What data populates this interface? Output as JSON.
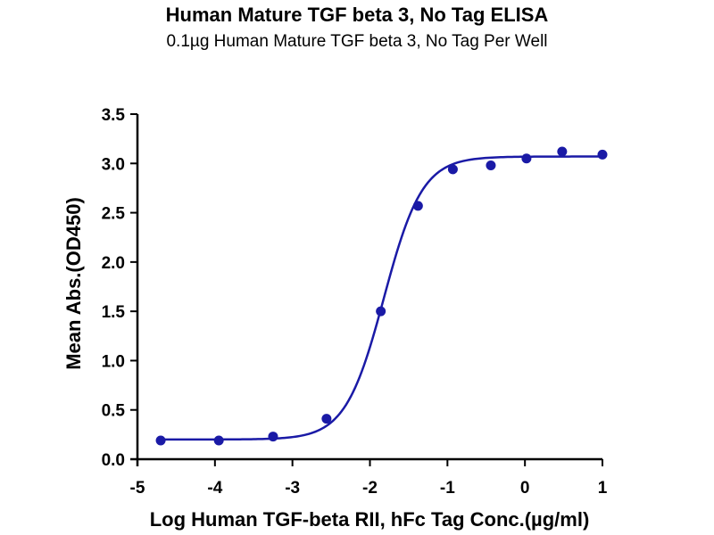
{
  "chart_data": {
    "type": "scatter",
    "title": "Human Mature TGF beta 3, No Tag ELISA",
    "subtitle": "0.1µg Human Mature TGF beta 3, No Tag Per Well",
    "xlabel": "Log Human TGF-beta RII, hFc Tag Conc.(µg/ml)",
    "ylabel": "Mean Abs.(OD450)",
    "xlim": [
      -5,
      1
    ],
    "ylim": [
      0,
      3.5
    ],
    "x_ticks": [
      "-5",
      "-4",
      "-3",
      "-2",
      "-1",
      "0",
      "1"
    ],
    "y_ticks": [
      "0.0",
      "0.5",
      "1.0",
      "1.5",
      "2.0",
      "2.5",
      "3.0",
      "3.5"
    ],
    "grid": false,
    "color": "#1a1aa6",
    "series": [
      {
        "x": [
          -4.7,
          -3.95,
          -3.25,
          -2.56,
          -1.86,
          -1.38,
          -0.93,
          -0.44,
          0.02,
          0.48,
          1.0
        ],
        "y": [
          0.19,
          0.19,
          0.23,
          0.41,
          1.5,
          2.57,
          2.94,
          2.98,
          3.05,
          3.12,
          3.09
        ]
      }
    ],
    "fit_curve": {
      "model": "4PL",
      "bottom": 0.2,
      "top": 3.07,
      "logEC50": -1.82,
      "hill_slope": 1.75
    }
  }
}
